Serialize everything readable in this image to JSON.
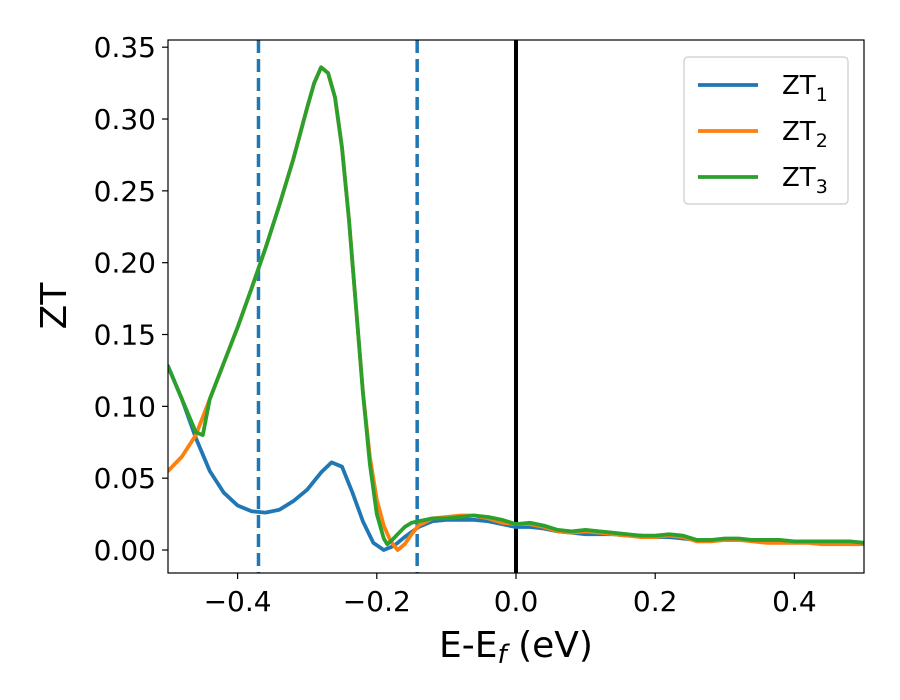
{
  "chart_data": {
    "type": "line",
    "title": "",
    "xlabel": {
      "main": "E-E",
      "sub": "f",
      "suffix": " (eV)"
    },
    "ylabel": "ZT",
    "xlim": [
      -0.5,
      0.5
    ],
    "ylim": [
      -0.016,
      0.355
    ],
    "xticks": [
      -0.4,
      -0.2,
      0.0,
      0.2,
      0.4
    ],
    "xtick_labels": [
      "−0.4",
      "−0.2",
      "0.0",
      "0.2",
      "0.4"
    ],
    "yticks": [
      0.0,
      0.05,
      0.1,
      0.15,
      0.2,
      0.25,
      0.3,
      0.35
    ],
    "ytick_labels": [
      "0.00",
      "0.05",
      "0.10",
      "0.15",
      "0.20",
      "0.25",
      "0.30",
      "0.35"
    ],
    "grid": false,
    "legend_position": "top-right",
    "vlines": [
      {
        "x": -0.37,
        "style": "dashed",
        "color": "#1f77b4"
      },
      {
        "x": -0.142,
        "style": "dashed",
        "color": "#1f77b4"
      },
      {
        "x": 0.0,
        "style": "solid",
        "color": "#000000"
      }
    ],
    "series": [
      {
        "name": "ZT",
        "sub": "1",
        "color": "#1f77b4",
        "points": [
          [
            -0.5,
            0.128
          ],
          [
            -0.48,
            0.105
          ],
          [
            -0.46,
            0.078
          ],
          [
            -0.44,
            0.055
          ],
          [
            -0.42,
            0.04
          ],
          [
            -0.4,
            0.031
          ],
          [
            -0.38,
            0.027
          ],
          [
            -0.36,
            0.026
          ],
          [
            -0.34,
            0.028
          ],
          [
            -0.32,
            0.034
          ],
          [
            -0.3,
            0.042
          ],
          [
            -0.28,
            0.054
          ],
          [
            -0.265,
            0.061
          ],
          [
            -0.25,
            0.058
          ],
          [
            -0.235,
            0.04
          ],
          [
            -0.22,
            0.02
          ],
          [
            -0.205,
            0.005
          ],
          [
            -0.19,
            0.0
          ],
          [
            -0.175,
            0.003
          ],
          [
            -0.16,
            0.009
          ],
          [
            -0.14,
            0.016
          ],
          [
            -0.12,
            0.02
          ],
          [
            -0.1,
            0.021
          ],
          [
            -0.08,
            0.021
          ],
          [
            -0.06,
            0.021
          ],
          [
            -0.04,
            0.02
          ],
          [
            -0.02,
            0.018
          ],
          [
            0.0,
            0.016
          ],
          [
            0.02,
            0.016
          ],
          [
            0.04,
            0.015
          ],
          [
            0.06,
            0.013
          ],
          [
            0.08,
            0.012
          ],
          [
            0.1,
            0.011
          ],
          [
            0.12,
            0.011
          ],
          [
            0.14,
            0.011
          ],
          [
            0.16,
            0.01
          ],
          [
            0.18,
            0.01
          ],
          [
            0.2,
            0.009
          ],
          [
            0.22,
            0.009
          ],
          [
            0.24,
            0.008
          ],
          [
            0.26,
            0.007
          ],
          [
            0.28,
            0.007
          ],
          [
            0.3,
            0.007
          ],
          [
            0.32,
            0.007
          ],
          [
            0.34,
            0.007
          ],
          [
            0.36,
            0.006
          ],
          [
            0.38,
            0.006
          ],
          [
            0.4,
            0.006
          ],
          [
            0.42,
            0.006
          ],
          [
            0.44,
            0.006
          ],
          [
            0.46,
            0.005
          ],
          [
            0.48,
            0.005
          ],
          [
            0.5,
            0.005
          ]
        ]
      },
      {
        "name": "ZT",
        "sub": "2",
        "color": "#ff7f0e",
        "points": [
          [
            -0.5,
            0.055
          ],
          [
            -0.48,
            0.065
          ],
          [
            -0.46,
            0.08
          ],
          [
            -0.44,
            0.105
          ],
          [
            -0.42,
            0.13
          ],
          [
            -0.4,
            0.155
          ],
          [
            -0.38,
            0.182
          ],
          [
            -0.36,
            0.21
          ],
          [
            -0.34,
            0.24
          ],
          [
            -0.32,
            0.272
          ],
          [
            -0.3,
            0.308
          ],
          [
            -0.29,
            0.325
          ],
          [
            -0.28,
            0.336
          ],
          [
            -0.27,
            0.332
          ],
          [
            -0.26,
            0.315
          ],
          [
            -0.25,
            0.28
          ],
          [
            -0.24,
            0.23
          ],
          [
            -0.23,
            0.17
          ],
          [
            -0.22,
            0.11
          ],
          [
            -0.21,
            0.065
          ],
          [
            -0.2,
            0.035
          ],
          [
            -0.19,
            0.017
          ],
          [
            -0.18,
            0.006
          ],
          [
            -0.17,
            0.0
          ],
          [
            -0.16,
            0.004
          ],
          [
            -0.15,
            0.011
          ],
          [
            -0.14,
            0.017
          ],
          [
            -0.12,
            0.022
          ],
          [
            -0.1,
            0.023
          ],
          [
            -0.08,
            0.024
          ],
          [
            -0.06,
            0.024
          ],
          [
            -0.04,
            0.022
          ],
          [
            -0.02,
            0.019
          ],
          [
            0.0,
            0.018
          ],
          [
            0.02,
            0.018
          ],
          [
            0.04,
            0.016
          ],
          [
            0.06,
            0.013
          ],
          [
            0.08,
            0.012
          ],
          [
            0.1,
            0.013
          ],
          [
            0.12,
            0.012
          ],
          [
            0.14,
            0.011
          ],
          [
            0.16,
            0.01
          ],
          [
            0.18,
            0.009
          ],
          [
            0.2,
            0.009
          ],
          [
            0.22,
            0.01
          ],
          [
            0.24,
            0.009
          ],
          [
            0.26,
            0.006
          ],
          [
            0.28,
            0.006
          ],
          [
            0.3,
            0.007
          ],
          [
            0.32,
            0.007
          ],
          [
            0.34,
            0.006
          ],
          [
            0.36,
            0.005
          ],
          [
            0.38,
            0.005
          ],
          [
            0.4,
            0.005
          ],
          [
            0.42,
            0.005
          ],
          [
            0.44,
            0.004
          ],
          [
            0.46,
            0.004
          ],
          [
            0.48,
            0.004
          ],
          [
            0.5,
            0.004
          ]
        ]
      },
      {
        "name": "ZT",
        "sub": "3",
        "color": "#2ca02c",
        "points": [
          [
            -0.5,
            0.128
          ],
          [
            -0.48,
            0.105
          ],
          [
            -0.46,
            0.082
          ],
          [
            -0.45,
            0.08
          ],
          [
            -0.44,
            0.105
          ],
          [
            -0.42,
            0.13
          ],
          [
            -0.4,
            0.155
          ],
          [
            -0.38,
            0.182
          ],
          [
            -0.36,
            0.21
          ],
          [
            -0.34,
            0.24
          ],
          [
            -0.32,
            0.272
          ],
          [
            -0.3,
            0.308
          ],
          [
            -0.29,
            0.325
          ],
          [
            -0.28,
            0.336
          ],
          [
            -0.27,
            0.332
          ],
          [
            -0.26,
            0.315
          ],
          [
            -0.25,
            0.28
          ],
          [
            -0.24,
            0.23
          ],
          [
            -0.23,
            0.17
          ],
          [
            -0.22,
            0.11
          ],
          [
            -0.21,
            0.06
          ],
          [
            -0.2,
            0.025
          ],
          [
            -0.19,
            0.008
          ],
          [
            -0.185,
            0.004
          ],
          [
            -0.18,
            0.006
          ],
          [
            -0.17,
            0.011
          ],
          [
            -0.16,
            0.016
          ],
          [
            -0.15,
            0.019
          ],
          [
            -0.14,
            0.02
          ],
          [
            -0.12,
            0.022
          ],
          [
            -0.1,
            0.022
          ],
          [
            -0.08,
            0.023
          ],
          [
            -0.06,
            0.024
          ],
          [
            -0.04,
            0.023
          ],
          [
            -0.02,
            0.021
          ],
          [
            0.0,
            0.018
          ],
          [
            0.02,
            0.019
          ],
          [
            0.04,
            0.017
          ],
          [
            0.06,
            0.014
          ],
          [
            0.08,
            0.013
          ],
          [
            0.1,
            0.014
          ],
          [
            0.12,
            0.013
          ],
          [
            0.14,
            0.012
          ],
          [
            0.16,
            0.011
          ],
          [
            0.18,
            0.01
          ],
          [
            0.2,
            0.01
          ],
          [
            0.22,
            0.011
          ],
          [
            0.24,
            0.01
          ],
          [
            0.26,
            0.007
          ],
          [
            0.28,
            0.007
          ],
          [
            0.3,
            0.008
          ],
          [
            0.32,
            0.008
          ],
          [
            0.34,
            0.007
          ],
          [
            0.36,
            0.007
          ],
          [
            0.38,
            0.007
          ],
          [
            0.4,
            0.006
          ],
          [
            0.42,
            0.006
          ],
          [
            0.44,
            0.006
          ],
          [
            0.46,
            0.006
          ],
          [
            0.48,
            0.006
          ],
          [
            0.5,
            0.005
          ]
        ]
      }
    ]
  }
}
